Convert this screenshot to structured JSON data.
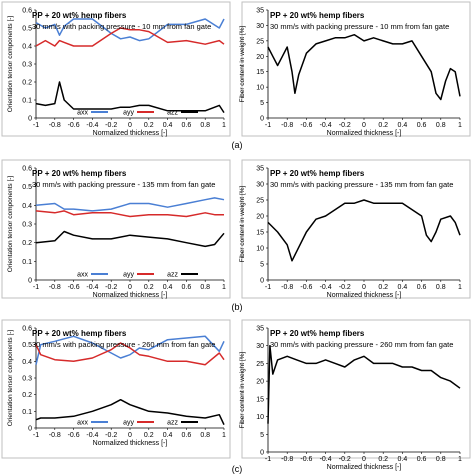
{
  "colors": {
    "axx": "#4a7fd4",
    "ayy": "#d62a2a",
    "azz": "#000000",
    "fiber": "#000000",
    "frame": "#bfbfbf",
    "text": "#000000"
  },
  "row_labels": [
    "(a)",
    "(b)",
    "(c)"
  ],
  "chart_data": [
    {
      "type": "line",
      "panel": "orientation",
      "row": "(a)",
      "title": "PP + 20 wt% hemp fibers",
      "subtitle": "30 mm/s with packing pressure - 10 mm from fan gate",
      "xlabel": "Normalized thickness [-]",
      "ylabel": "Orientation tensor components [-]",
      "xlim": [
        -1,
        1
      ],
      "ylim": [
        0,
        0.6
      ],
      "xticks": [
        "-1",
        "-0.8",
        "-0.6",
        "-0.4",
        "-0.2",
        "0",
        "0.2",
        "0.4",
        "0.6",
        "0.8",
        "1"
      ],
      "yticks": [
        "0",
        "0.1",
        "0.2",
        "0.3",
        "0.4",
        "0.5",
        "0.6"
      ],
      "legend": "bottom",
      "grid": false,
      "x": [
        -1,
        -0.9,
        -0.8,
        -0.75,
        -0.7,
        -0.6,
        -0.4,
        -0.2,
        -0.1,
        0,
        0.1,
        0.2,
        0.4,
        0.6,
        0.8,
        0.95,
        1
      ],
      "series": [
        {
          "name": "axx",
          "values": [
            0.53,
            0.5,
            0.52,
            0.46,
            0.51,
            0.55,
            0.55,
            0.47,
            0.44,
            0.45,
            0.43,
            0.44,
            0.52,
            0.52,
            0.55,
            0.5,
            0.55
          ]
        },
        {
          "name": "ayy",
          "values": [
            0.4,
            0.43,
            0.4,
            0.43,
            0.42,
            0.4,
            0.4,
            0.47,
            0.5,
            0.49,
            0.49,
            0.48,
            0.42,
            0.43,
            0.41,
            0.43,
            0.41
          ]
        },
        {
          "name": "azz",
          "values": [
            0.08,
            0.07,
            0.08,
            0.2,
            0.1,
            0.05,
            0.05,
            0.05,
            0.06,
            0.06,
            0.07,
            0.07,
            0.04,
            0.04,
            0.04,
            0.07,
            0.03
          ]
        }
      ]
    },
    {
      "type": "line",
      "panel": "fiber",
      "row": "(a)",
      "title": "PP + 20 wt% hemp fibers",
      "subtitle": "30 mm/s with packing pressure - 10 mm from fan gate",
      "xlabel": "Normalized thickness [-]",
      "ylabel": "Fiber content in weight [%]",
      "xlim": [
        -1,
        1
      ],
      "ylim": [
        0,
        35
      ],
      "xticks": [
        "-1",
        "-0.8",
        "-0.6",
        "-0.4",
        "-0.2",
        "0",
        "0.2",
        "0.4",
        "0.6",
        "0.8",
        "1"
      ],
      "yticks": [
        "0",
        "5",
        "10",
        "15",
        "20",
        "25",
        "30",
        "35"
      ],
      "grid": false,
      "x": [
        -1,
        -0.95,
        -0.9,
        -0.85,
        -0.8,
        -0.75,
        -0.72,
        -0.68,
        -0.6,
        -0.5,
        -0.4,
        -0.3,
        -0.2,
        -0.1,
        0,
        0.1,
        0.2,
        0.3,
        0.4,
        0.5,
        0.6,
        0.7,
        0.75,
        0.8,
        0.85,
        0.9,
        0.95,
        1
      ],
      "series": [
        {
          "name": "",
          "values": [
            23,
            20,
            17,
            20,
            23,
            15,
            8,
            14,
            21,
            24,
            25,
            26,
            26,
            27,
            25,
            26,
            25,
            24,
            24,
            25,
            20,
            15,
            8,
            6,
            12,
            16,
            15,
            7
          ]
        }
      ]
    },
    {
      "type": "line",
      "panel": "orientation",
      "row": "(b)",
      "title": "PP + 20 wt% hemp fibers",
      "subtitle": "30 mm/s with packing pressure - 135 mm from fan gate",
      "xlabel": "Normalized thickness [-]",
      "ylabel": "Orientation tensor components [-]",
      "xlim": [
        -1,
        1
      ],
      "ylim": [
        0,
        0.6
      ],
      "xticks": [
        "-1",
        "-0.8",
        "-0.6",
        "-0.4",
        "-0.2",
        "0",
        "0.2",
        "0.4",
        "0.6",
        "0.8",
        "1"
      ],
      "yticks": [
        "0",
        "0.1",
        "0.2",
        "0.3",
        "0.4",
        "0.5",
        "0.6"
      ],
      "legend": "bottom",
      "grid": false,
      "x": [
        -1,
        -0.8,
        -0.7,
        -0.6,
        -0.4,
        -0.2,
        0,
        0.2,
        0.4,
        0.6,
        0.8,
        0.9,
        1
      ],
      "series": [
        {
          "name": "axx",
          "values": [
            0.4,
            0.41,
            0.38,
            0.38,
            0.37,
            0.38,
            0.41,
            0.41,
            0.39,
            0.41,
            0.43,
            0.44,
            0.43
          ]
        },
        {
          "name": "ayy",
          "values": [
            0.37,
            0.36,
            0.37,
            0.35,
            0.36,
            0.36,
            0.34,
            0.35,
            0.35,
            0.34,
            0.36,
            0.35,
            0.35
          ]
        },
        {
          "name": "azz",
          "values": [
            0.2,
            0.21,
            0.26,
            0.24,
            0.22,
            0.22,
            0.24,
            0.23,
            0.22,
            0.2,
            0.18,
            0.19,
            0.25
          ]
        }
      ]
    },
    {
      "type": "line",
      "panel": "fiber",
      "row": "(b)",
      "title": "PP + 20 wt% hemp fibers",
      "subtitle": "30 mm/s with packing pressure - 135 mm from fan gate",
      "xlabel": "Normalized thickness [-]",
      "ylabel": "Fiber content in weight [%]",
      "xlim": [
        -1,
        1
      ],
      "ylim": [
        0,
        35
      ],
      "xticks": [
        "-1",
        "-0.8",
        "-0.6",
        "-0.4",
        "-0.2",
        "0",
        "0.2",
        "0.4",
        "0.6",
        "0.8",
        "1"
      ],
      "yticks": [
        "0",
        "5",
        "10",
        "15",
        "20",
        "25",
        "30",
        "35"
      ],
      "grid": false,
      "x": [
        -1,
        -0.9,
        -0.8,
        -0.75,
        -0.7,
        -0.6,
        -0.5,
        -0.4,
        -0.3,
        -0.2,
        -0.1,
        0,
        0.1,
        0.2,
        0.3,
        0.4,
        0.5,
        0.6,
        0.65,
        0.7,
        0.75,
        0.8,
        0.9,
        0.95,
        1
      ],
      "series": [
        {
          "name": "",
          "values": [
            18,
            15,
            11,
            6,
            9,
            15,
            19,
            20,
            22,
            24,
            24,
            25,
            24,
            24,
            24,
            24,
            22,
            20,
            14,
            12,
            15,
            19,
            20,
            18,
            14
          ]
        }
      ]
    },
    {
      "type": "line",
      "panel": "orientation",
      "row": "(c)",
      "title": "PP + 20 wt% hemp fibers",
      "subtitle": "30 mm/s with packing pressure - 260 mm from fan gate",
      "xlabel": "Normalized thickness [-]",
      "ylabel": "Orientation tensor components [-]",
      "xlim": [
        -1,
        1
      ],
      "ylim": [
        0,
        0.6
      ],
      "xticks": [
        "-1",
        "-0.8",
        "-0.6",
        "-0.4",
        "-0.2",
        "0",
        "0.2",
        "0.4",
        "0.6",
        "0.8",
        "1"
      ],
      "yticks": [
        "0",
        "0.1",
        "0.2",
        "0.3",
        "0.4",
        "0.5",
        "0.6"
      ],
      "legend": "bottom",
      "grid": false,
      "x": [
        -1,
        -0.95,
        -0.8,
        -0.6,
        -0.4,
        -0.2,
        -0.1,
        0,
        0.1,
        0.2,
        0.4,
        0.6,
        0.8,
        0.95,
        1
      ],
      "series": [
        {
          "name": "axx",
          "values": [
            0.38,
            0.5,
            0.52,
            0.55,
            0.51,
            0.45,
            0.42,
            0.44,
            0.48,
            0.47,
            0.53,
            0.54,
            0.55,
            0.46,
            0.52
          ]
        },
        {
          "name": "ayy",
          "values": [
            0.5,
            0.44,
            0.41,
            0.4,
            0.42,
            0.47,
            0.51,
            0.48,
            0.44,
            0.43,
            0.4,
            0.4,
            0.38,
            0.45,
            0.41
          ]
        },
        {
          "name": "azz",
          "values": [
            0.05,
            0.06,
            0.06,
            0.07,
            0.1,
            0.14,
            0.17,
            0.14,
            0.12,
            0.1,
            0.09,
            0.07,
            0.06,
            0.08,
            0.02
          ]
        }
      ]
    },
    {
      "type": "line",
      "panel": "fiber",
      "row": "(c)",
      "title": "PP + 20 wt% hemp fibers",
      "subtitle": "30 mm/s with packing pressure - 260 mm from fan gate",
      "xlabel": "Normalized thickness [-]",
      "ylabel": "Fiber content in weight [%]",
      "xlim": [
        -1,
        1
      ],
      "ylim": [
        0,
        35
      ],
      "xticks": [
        "-1",
        "-0.8",
        "-0.6",
        "-0.4",
        "-0.2",
        "0",
        "0.2",
        "0.4",
        "0.6",
        "0.8",
        "1"
      ],
      "yticks": [
        "0",
        "5",
        "10",
        "15",
        "20",
        "25",
        "30",
        "35"
      ],
      "grid": false,
      "x": [
        -1,
        -0.98,
        -0.95,
        -0.9,
        -0.8,
        -0.7,
        -0.6,
        -0.5,
        -0.4,
        -0.3,
        -0.2,
        -0.1,
        0,
        0.1,
        0.2,
        0.3,
        0.4,
        0.5,
        0.6,
        0.7,
        0.8,
        0.9,
        1
      ],
      "series": [
        {
          "name": "",
          "values": [
            8,
            30,
            22,
            26,
            27,
            26,
            25,
            25,
            26,
            25,
            24,
            26,
            27,
            25,
            25,
            25,
            24,
            24,
            23,
            23,
            21,
            20,
            18
          ]
        }
      ]
    }
  ]
}
